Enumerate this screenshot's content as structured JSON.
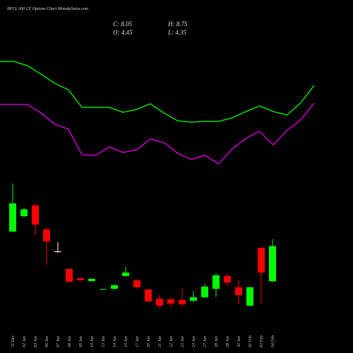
{
  "chart_data": {
    "type": "candlestick",
    "title": "BPCL 300 CE Options Chart MunafaSutra.com",
    "stats": [
      "C: 8.05",
      "H: 8.75",
      "O: 4.45",
      "L: 4.35"
    ],
    "categories": [
      "31 Dec",
      "02 Jan",
      "03 Jan",
      "06 Jan",
      "07 Jan",
      "08 Jan",
      "09 Jan",
      "10 Jan",
      "13 Jan",
      "14 Jan",
      "15 Jan",
      "17 Jan",
      "20 Jan",
      "21 Jan",
      "22 Jan",
      "23 Jan",
      "24 Jan",
      "27 Jan",
      "28 Jan",
      "29 Jan",
      "30 Jan",
      "01 Feb",
      "03 Feb",
      "04 Feb"
    ],
    "open": [
      9.53,
      11.1,
      12.2,
      9.74,
      7.5,
      5.7,
      4.76,
      4.47,
      3.6,
      3.68,
      4.98,
      4.55,
      3.61,
      2.67,
      2.6,
      2.53,
      2.45,
      2.81,
      3.68,
      4.98,
      3.83,
      1.95,
      7.87,
      4.45
    ],
    "high": [
      14.43,
      11.95,
      12.41,
      9.89,
      8.44,
      5.77,
      4.83,
      4.76,
      3.68,
      4.11,
      5.92,
      4.62,
      3.68,
      3.03,
      2.74,
      3.75,
      3.46,
      4.18,
      5.27,
      5.2,
      4.62,
      3.9,
      7.87,
      8.75
    ],
    "low": [
      9.53,
      10.97,
      9.17,
      6.13,
      7.36,
      4.33,
      4.48,
      4.4,
      3.58,
      3.61,
      4.91,
      3.68,
      2.31,
      1.66,
      1.73,
      1.88,
      2.31,
      2.74,
      2.88,
      3.97,
      2.09,
      1.88,
      2.09,
      4.35
    ],
    "close": [
      12.41,
      11.8,
      10.25,
      8.52,
      7.5,
      4.4,
      4.55,
      4.69,
      3.65,
      4.04,
      5.34,
      3.83,
      2.38,
      1.95,
      2.17,
      2.09,
      2.81,
      3.9,
      5.05,
      4.33,
      3.03,
      3.83,
      5.34,
      8.05
    ],
    "up_color": "#00ff00",
    "down_color": "#ff0000",
    "flat_color": "#ffffff",
    "series": [
      {
        "color": "#00dd00",
        "values": [
          26.92,
          26.92,
          26.49,
          25.62,
          24.68,
          24.03,
          22.23,
          22.23,
          22.23,
          21.72,
          22.01,
          22.59,
          21.65,
          20.86,
          20.71,
          20.79,
          20.79,
          21.15,
          21.8,
          22.37,
          21.8,
          21.44,
          22.66,
          24.47
        ]
      },
      {
        "color": "#cc00cc",
        "values": [
          22.52,
          22.52,
          22.52,
          21.65,
          20.5,
          19.99,
          17.39,
          17.32,
          18.19,
          17.61,
          17.9,
          18.98,
          18.62,
          17.54,
          16.89,
          17.32,
          16.46,
          17.97,
          19.05,
          19.78,
          18.4,
          19.85,
          20.93,
          22.66
        ]
      }
    ],
    "ylim": [
      0,
      33.2
    ]
  }
}
